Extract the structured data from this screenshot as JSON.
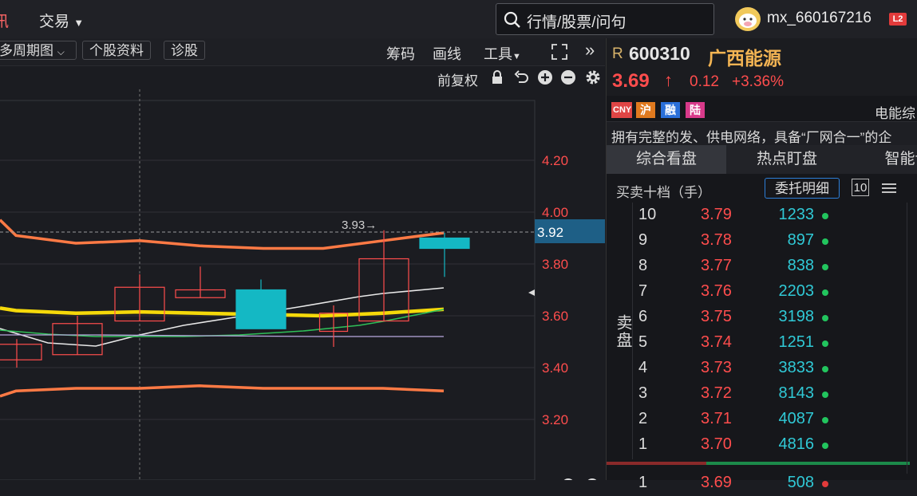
{
  "topbar": {
    "left_cut": "讯",
    "menu_trade": "交易",
    "search_placeholder": "行情/股票/问句",
    "username": "mx_660167216",
    "badge": "L2"
  },
  "chart_toolbar": {
    "multi_period": "多周期图",
    "stock_info": "个股资料",
    "diagnose": "诊股",
    "chips": "筹码",
    "draw": "画线",
    "tools": "工具",
    "adjust": "前复权"
  },
  "chart_data": {
    "type": "candlestick",
    "yticks": [
      "4.20",
      "4.00",
      "3.80",
      "3.60",
      "3.40",
      "3.20"
    ],
    "current_price_label": "3.92",
    "high_annotation": "3.93→",
    "candles": [
      {
        "open": 3.43,
        "close": 3.49,
        "high": 3.51,
        "low": 3.4,
        "color": "red"
      },
      {
        "open": 3.45,
        "close": 3.57,
        "high": 3.6,
        "low": 3.45,
        "color": "red"
      },
      {
        "open": 3.58,
        "close": 3.71,
        "high": 3.76,
        "low": 3.58,
        "color": "red"
      },
      {
        "open": 3.67,
        "close": 3.7,
        "high": 3.79,
        "low": 3.67,
        "color": "red"
      },
      {
        "open": 3.7,
        "close": 3.55,
        "high": 3.74,
        "low": 3.55,
        "color": "cyan"
      },
      {
        "open": 3.54,
        "close": 3.61,
        "high": 3.64,
        "low": 3.48,
        "color": "red"
      },
      {
        "open": 3.58,
        "close": 3.82,
        "high": 3.93,
        "low": 3.58,
        "color": "red"
      },
      {
        "open": 3.9,
        "close": 3.86,
        "high": 3.92,
        "low": 3.75,
        "color": "cyan"
      }
    ],
    "bands": {
      "upper": [
        3.97,
        3.91,
        3.88,
        3.89,
        3.87,
        3.86,
        3.86,
        3.89,
        3.92
      ],
      "middle": [
        3.63,
        3.62,
        3.61,
        3.615,
        3.61,
        3.605,
        3.6,
        3.61,
        3.625
      ],
      "lower": [
        3.29,
        3.31,
        3.32,
        3.32,
        3.33,
        3.32,
        3.32,
        3.32,
        3.31
      ]
    }
  },
  "stock": {
    "prefix": "R",
    "code": "600310",
    "name": "广西能源",
    "price": "3.69",
    "arrow": "↑",
    "change": "0.12",
    "change_pct": "+3.36%",
    "tags": [
      "CNY",
      "沪",
      "融",
      "陆"
    ],
    "sector": "电能综",
    "desc": "拥有完整的发、供电网络，具备“厂网合一”的企"
  },
  "tabs": [
    "综合看盘",
    "热点盯盘",
    "智能诊"
  ],
  "orderbook": {
    "title": "买卖十档（手）",
    "detail_btn": "委托明细",
    "level_btn": "10",
    "sell_label": "卖盘",
    "sell": [
      {
        "level": "10",
        "price": "3.79",
        "vol": "1233"
      },
      {
        "level": "9",
        "price": "3.78",
        "vol": "897"
      },
      {
        "level": "8",
        "price": "3.77",
        "vol": "838"
      },
      {
        "level": "7",
        "price": "3.76",
        "vol": "2203"
      },
      {
        "level": "6",
        "price": "3.75",
        "vol": "3198"
      },
      {
        "level": "5",
        "price": "3.74",
        "vol": "1251"
      },
      {
        "level": "4",
        "price": "3.73",
        "vol": "3833"
      },
      {
        "level": "3",
        "price": "3.72",
        "vol": "8143"
      },
      {
        "level": "2",
        "price": "3.71",
        "vol": "4087"
      },
      {
        "level": "1",
        "price": "3.70",
        "vol": "4816"
      }
    ],
    "buy_first": {
      "level": "1",
      "price": "3.69",
      "vol": "508"
    }
  },
  "colors": {
    "up": "#ff4d4d",
    "down": "#14b8c4",
    "band": "#ff7a45",
    "mid": "#f5d90a"
  }
}
